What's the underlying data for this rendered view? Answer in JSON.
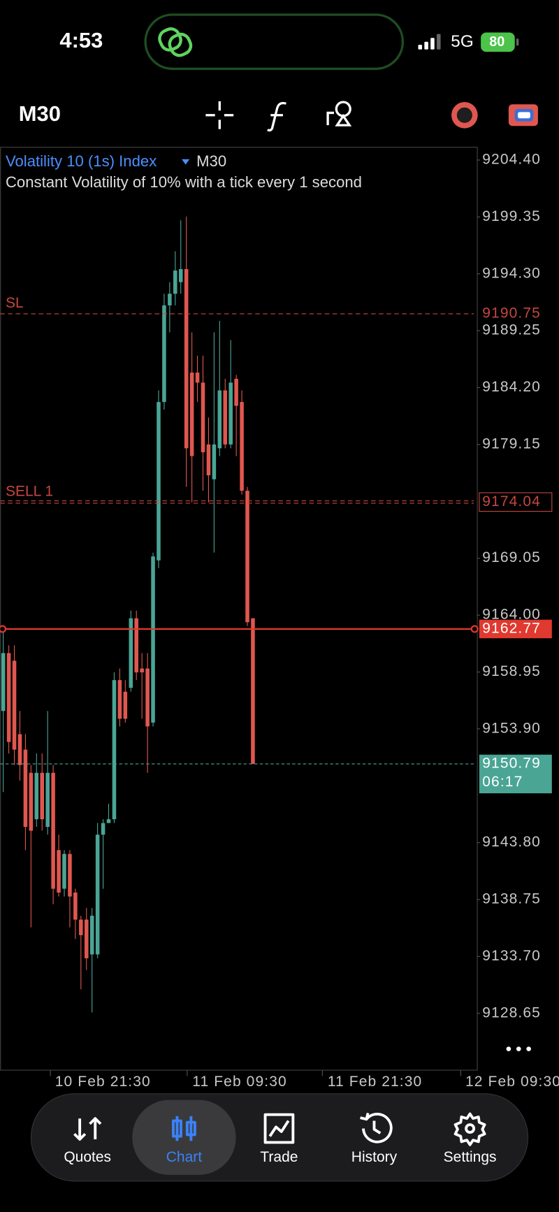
{
  "status_bar": {
    "time": "4:53",
    "network": "5G",
    "battery": 80
  },
  "toolbar": {
    "timeframe": "M30"
  },
  "chart_data": {
    "type": "candlestick",
    "title": "Volatility 10 (1s) Index",
    "timeframe": "M30",
    "subtitle": "Constant Volatility of 10% with a tick every 1 second",
    "x_labels": [
      "10 Feb 21:30",
      "11 Feb 09:30",
      "11 Feb 21:30",
      "12 Feb 09:30"
    ],
    "ylim": [
      9123.57,
      9205.57
    ],
    "yticks": [
      {
        "value": 9204.4,
        "label": "9204.40"
      },
      9199.35,
      {
        "value": 9194.3,
        "label": "9194.30"
      },
      9189.25,
      {
        "value": 9184.2,
        "label": "9184.20"
      },
      9179.15,
      9169.05,
      {
        "value": 9164,
        "label": "9164.00"
      },
      9158.95,
      {
        "value": 9153.9,
        "label": "9153.90"
      },
      {
        "value": 9143.8,
        "label": "9143.80"
      },
      9138.75,
      {
        "value": 9133.7,
        "label": "9133.70"
      },
      9128.65
    ],
    "up_color": "#4aa595",
    "down_color": "#e0574f",
    "open": [
      9155.49,
      9160.63,
      9159.95,
      9153.43,
      9152.06,
      9150.0,
      9145.88,
      9150.0,
      9145.2,
      9150.0,
      9143.14,
      9139.71,
      9142.8,
      9139.37,
      9136.97,
      9136.97,
      9133.88,
      9133.88,
      9144.51,
      9145.54,
      9145.88,
      9158.23,
      9157.2,
      9157.55,
      9163.72,
      9159.26,
      9159.26,
      9154.46,
      9168.86,
      9182.92,
      9191.5,
      9192.53,
      9193.56,
      9194.72,
      9185.53,
      9185.53,
      9184.64,
      9179.15,
      9176.06,
      9178.81,
      9183.95,
      9179.15,
      9184.98,
      9182.92,
      9175.04,
      9163.72
    ],
    "high": [
      9162.69,
      9161.32,
      9161.32,
      9155.49,
      9153.43,
      9150.69,
      9151.72,
      9151.72,
      9155.49,
      9150.69,
      9144.51,
      9143.14,
      9143.14,
      9139.71,
      9137.31,
      9138.0,
      9138.0,
      9145.54,
      9145.88,
      9147.26,
      9158.92,
      9159.26,
      9158.23,
      9164.4,
      9164.4,
      9160.63,
      9160.63,
      9169.55,
      9183.95,
      9192.53,
      9193.56,
      9196.3,
      9199.05,
      9199.39,
      9189.1,
      9187.04,
      9187.04,
      9181.55,
      9189.1,
      9190.13,
      9184.98,
      9188.41,
      9185.33,
      9183.95,
      9175.38,
      9163.72
    ],
    "low": [
      9148.29,
      9151.72,
      9150.69,
      9149.31,
      9143.14,
      9136.28,
      9145.2,
      9144.86,
      9144.51,
      9138.34,
      9139.02,
      9139.02,
      9136.28,
      9135.25,
      9130.79,
      9132.5,
      9128.73,
      9133.54,
      9139.71,
      9145.54,
      9145.54,
      9154.12,
      9154.46,
      9157.2,
      9158.23,
      9154.8,
      9150.0,
      9154.12,
      9168.17,
      9182.24,
      9189.1,
      9191.5,
      9192.53,
      9175.38,
      9174.01,
      9182.92,
      9175.04,
      9174.01,
      9169.55,
      9178.12,
      9178.81,
      9178.81,
      9178.12,
      9174.7,
      9163.03,
      9150.79
    ],
    "close": [
      9160.63,
      9152.74,
      9152.06,
      9150.69,
      9145.2,
      9144.86,
      9150.0,
      9145.88,
      9150.0,
      9139.71,
      9139.37,
      9142.8,
      9139.02,
      9136.97,
      9135.59,
      9133.54,
      9137.31,
      9144.51,
      9145.54,
      9145.88,
      9158.23,
      9154.8,
      9154.8,
      9163.72,
      9158.92,
      9158.92,
      9154.12,
      9169.21,
      9182.92,
      9191.5,
      9192.53,
      9194.59,
      9194.72,
      9178.81,
      9178.12,
      9184.64,
      9178.46,
      9176.41,
      9179.15,
      9183.95,
      9179.15,
      9184.64,
      9182.58,
      9175.04,
      9163.37,
      9150.79
    ],
    "levels": [
      {
        "name": "SL",
        "value": 9190.75,
        "color": "#c4473f",
        "style": "dashed",
        "label_style": "text"
      },
      {
        "name": "SELL 1",
        "value": 9174.04,
        "color": "#c4473f",
        "style": "double",
        "label_style": "box"
      },
      {
        "value": 9162.77,
        "color": "#e0392f",
        "style": "solid",
        "label_style": "fill"
      },
      {
        "value": 9150.79,
        "color": "#4aa595",
        "style": "dotted",
        "label_style": "fill",
        "timer": "06:17"
      }
    ]
  },
  "nav": {
    "items": [
      "Quotes",
      "Chart",
      "Trade",
      "History",
      "Settings"
    ],
    "active": 1
  }
}
